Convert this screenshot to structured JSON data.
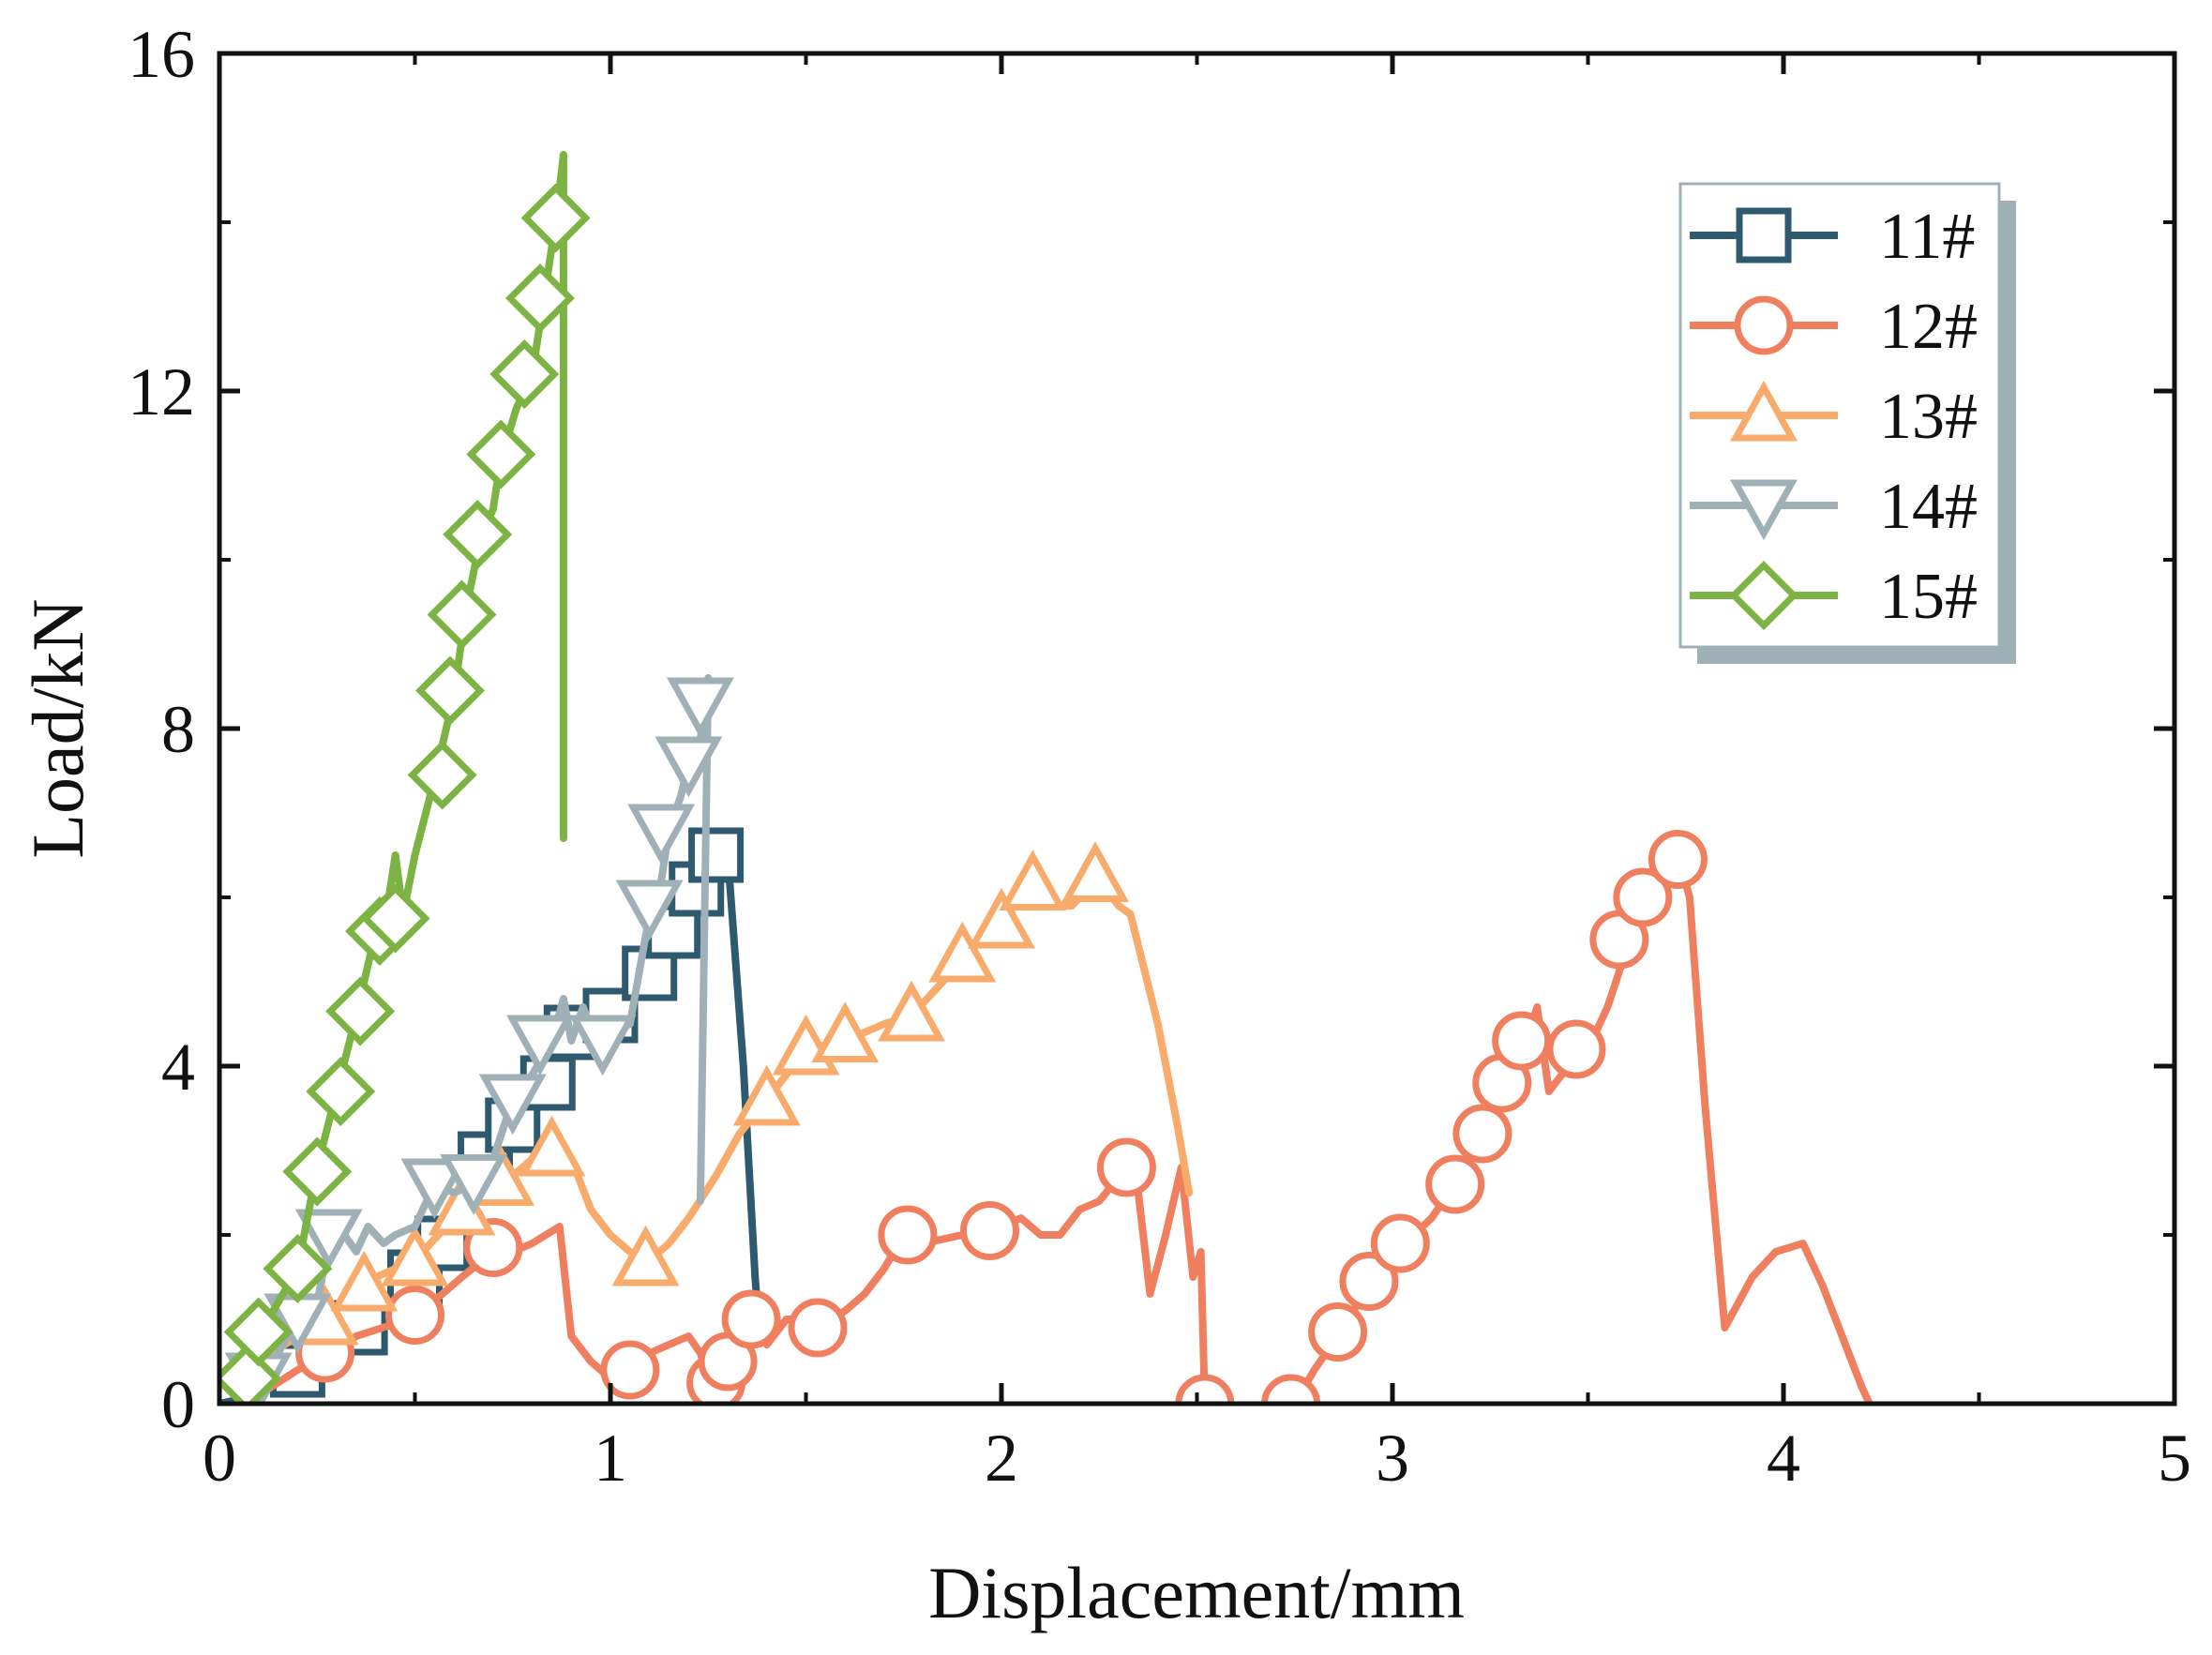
{
  "chart_data": {
    "type": "line",
    "title": "",
    "xlabel": "Displacement/mm",
    "ylabel": "Load/kN",
    "xlim": [
      0,
      5
    ],
    "ylim": [
      0,
      16
    ],
    "xticks": [
      0,
      1,
      2,
      3,
      4,
      5
    ],
    "yticks": [
      0,
      4,
      8,
      12,
      16
    ],
    "x_minor_step": 0.5,
    "y_minor_step": 2,
    "legend_position": "top-right",
    "series": [
      {
        "name": "11#",
        "marker": "square",
        "color": "#2d5a6e",
        "points": [
          [
            0,
            0
          ],
          [
            0.1,
            0.1
          ],
          [
            0.2,
            0.4
          ],
          [
            0.3,
            0.8
          ],
          [
            0.38,
            0.9
          ],
          [
            0.45,
            1.2
          ],
          [
            0.5,
            1.5
          ],
          [
            0.57,
            1.9
          ],
          [
            0.62,
            2.2
          ],
          [
            0.68,
            2.9
          ],
          [
            0.75,
            3.3
          ],
          [
            0.8,
            3.8
          ],
          [
            0.84,
            3.9
          ],
          [
            0.87,
            4.3
          ],
          [
            0.9,
            4.4
          ],
          [
            0.95,
            4.5
          ],
          [
            1.0,
            4.6
          ],
          [
            1.05,
            4.8
          ],
          [
            1.1,
            5.1
          ],
          [
            1.16,
            5.6
          ],
          [
            1.22,
            6.1
          ],
          [
            1.27,
            6.5
          ],
          [
            1.3,
            6.5
          ],
          [
            1.34,
            4.0
          ],
          [
            1.37,
            1.5
          ],
          [
            1.38,
            0.9
          ]
        ],
        "markers": [
          [
            0.2,
            0.4
          ],
          [
            0.36,
            0.9
          ],
          [
            0.5,
            1.5
          ],
          [
            0.57,
            1.9
          ],
          [
            0.68,
            2.9
          ],
          [
            0.75,
            3.3
          ],
          [
            0.84,
            3.8
          ],
          [
            0.9,
            4.4
          ],
          [
            1.0,
            4.6
          ],
          [
            1.1,
            5.1
          ],
          [
            1.16,
            5.6
          ],
          [
            1.22,
            6.1
          ],
          [
            1.27,
            6.5
          ]
        ]
      },
      {
        "name": "12#",
        "marker": "circle",
        "color": "#f07f5f",
        "points": [
          [
            0.1,
            0.1
          ],
          [
            0.2,
            0.4
          ],
          [
            0.28,
            0.6
          ],
          [
            0.35,
            0.8
          ],
          [
            0.45,
            0.95
          ],
          [
            0.5,
            1.05
          ],
          [
            0.57,
            1.3
          ],
          [
            0.62,
            1.5
          ],
          [
            0.7,
            1.8
          ],
          [
            0.75,
            1.8
          ],
          [
            0.8,
            1.9
          ],
          [
            0.87,
            2.1
          ],
          [
            0.9,
            0.8
          ],
          [
            0.95,
            0.5
          ],
          [
            1.0,
            0.3
          ],
          [
            1.05,
            0.4
          ],
          [
            1.1,
            0.6
          ],
          [
            1.15,
            0.7
          ],
          [
            1.2,
            0.8
          ],
          [
            1.23,
            0.6
          ],
          [
            1.25,
            0.3
          ],
          [
            1.28,
            0.5
          ],
          [
            1.33,
            0.8
          ],
          [
            1.36,
            1.0
          ],
          [
            1.4,
            0.7
          ],
          [
            1.45,
            1.0
          ],
          [
            1.5,
            1.0
          ],
          [
            1.53,
            0.9
          ],
          [
            1.6,
            1.1
          ],
          [
            1.65,
            1.3
          ],
          [
            1.7,
            1.6
          ],
          [
            1.75,
            2.0
          ],
          [
            1.8,
            1.9
          ],
          [
            1.9,
            2.0
          ],
          [
            2.0,
            2.1
          ],
          [
            2.05,
            2.2
          ],
          [
            2.1,
            2.0
          ],
          [
            2.15,
            2.0
          ],
          [
            2.2,
            2.3
          ],
          [
            2.25,
            2.4
          ],
          [
            2.32,
            2.8
          ],
          [
            2.35,
            2.5
          ],
          [
            2.38,
            1.3
          ],
          [
            2.42,
            2.0
          ],
          [
            2.46,
            2.8
          ],
          [
            2.49,
            1.5
          ],
          [
            2.51,
            1.8
          ],
          [
            2.52,
            0.0
          ],
          [
            2.6,
            -0.1
          ],
          [
            2.7,
            -0.1
          ],
          [
            2.75,
            0.0
          ],
          [
            2.8,
            0.4
          ],
          [
            2.86,
            0.8
          ],
          [
            2.9,
            1.1
          ],
          [
            2.95,
            1.45
          ],
          [
            3.0,
            1.7
          ],
          [
            3.03,
            1.9
          ],
          [
            3.1,
            2.2
          ],
          [
            3.16,
            2.6
          ],
          [
            3.23,
            3.2
          ],
          [
            3.28,
            3.8
          ],
          [
            3.33,
            4.1
          ],
          [
            3.37,
            4.7
          ],
          [
            3.4,
            3.7
          ],
          [
            3.45,
            4.0
          ],
          [
            3.5,
            4.2
          ],
          [
            3.55,
            4.7
          ],
          [
            3.6,
            5.4
          ],
          [
            3.65,
            5.8
          ],
          [
            3.7,
            6.3
          ],
          [
            3.73,
            6.5
          ],
          [
            3.76,
            6.0
          ],
          [
            3.8,
            3.5
          ],
          [
            3.85,
            0.9
          ],
          [
            3.92,
            1.5
          ],
          [
            3.98,
            1.8
          ],
          [
            4.05,
            1.9
          ],
          [
            4.1,
            1.4
          ],
          [
            4.2,
            0.2
          ],
          [
            4.22,
            0.0
          ]
        ],
        "markers": [
          [
            0.27,
            0.6
          ],
          [
            0.5,
            1.05
          ],
          [
            0.7,
            1.85
          ],
          [
            1.05,
            0.4
          ],
          [
            1.27,
            0.25
          ],
          [
            1.3,
            0.5
          ],
          [
            1.36,
            1.0
          ],
          [
            1.53,
            0.9
          ],
          [
            1.76,
            2.0
          ],
          [
            1.97,
            2.05
          ],
          [
            2.32,
            2.8
          ],
          [
            2.52,
            0.0
          ],
          [
            2.74,
            0.0
          ],
          [
            2.86,
            0.85
          ],
          [
            2.94,
            1.45
          ],
          [
            3.02,
            1.9
          ],
          [
            3.16,
            2.6
          ],
          [
            3.23,
            3.2
          ],
          [
            3.28,
            3.8
          ],
          [
            3.33,
            4.3
          ],
          [
            3.47,
            4.2
          ],
          [
            3.58,
            5.5
          ],
          [
            3.64,
            6.0
          ],
          [
            3.73,
            6.45
          ]
        ]
      },
      {
        "name": "13#",
        "marker": "triangle-up",
        "color": "#f8ab6b",
        "points": [
          [
            0.05,
            0.3
          ],
          [
            0.1,
            0.5
          ],
          [
            0.2,
            0.8
          ],
          [
            0.28,
            1.0
          ],
          [
            0.35,
            1.4
          ],
          [
            0.4,
            1.5
          ],
          [
            0.45,
            1.6
          ],
          [
            0.5,
            1.7
          ],
          [
            0.56,
            2.0
          ],
          [
            0.62,
            2.3
          ],
          [
            0.7,
            2.6
          ],
          [
            0.75,
            2.7
          ],
          [
            0.8,
            2.9
          ],
          [
            0.85,
            3.05
          ],
          [
            0.9,
            2.9
          ],
          [
            0.95,
            2.3
          ],
          [
            1.0,
            2.0
          ],
          [
            1.05,
            1.8
          ],
          [
            1.1,
            1.7
          ],
          [
            1.15,
            1.9
          ],
          [
            1.2,
            2.2
          ],
          [
            1.27,
            2.7
          ],
          [
            1.33,
            3.2
          ],
          [
            1.4,
            3.6
          ],
          [
            1.45,
            3.9
          ],
          [
            1.5,
            4.2
          ],
          [
            1.6,
            4.3
          ],
          [
            1.7,
            4.5
          ],
          [
            1.77,
            4.6
          ],
          [
            1.85,
            5.0
          ],
          [
            1.9,
            5.3
          ],
          [
            1.95,
            5.5
          ],
          [
            2.0,
            5.7
          ],
          [
            2.05,
            6.0
          ],
          [
            2.08,
            6.2
          ],
          [
            2.12,
            5.9
          ],
          [
            2.18,
            5.9
          ],
          [
            2.22,
            6.1
          ],
          [
            2.25,
            6.2
          ],
          [
            2.3,
            5.9
          ],
          [
            2.33,
            5.8
          ],
          [
            2.4,
            4.5
          ],
          [
            2.45,
            3.3
          ],
          [
            2.48,
            2.5
          ]
        ],
        "markers": [
          [
            0.27,
            1.0
          ],
          [
            0.37,
            1.4
          ],
          [
            0.5,
            1.7
          ],
          [
            0.62,
            2.3
          ],
          [
            0.72,
            2.65
          ],
          [
            0.85,
            3.0
          ],
          [
            1.09,
            1.7
          ],
          [
            1.4,
            3.6
          ],
          [
            1.5,
            4.2
          ],
          [
            1.6,
            4.35
          ],
          [
            1.77,
            4.6
          ],
          [
            1.9,
            5.3
          ],
          [
            2.0,
            5.7
          ],
          [
            2.08,
            6.15
          ],
          [
            2.24,
            6.25
          ]
        ]
      },
      {
        "name": "14#",
        "marker": "triangle-down",
        "color": "#9fb0b7",
        "points": [
          [
            0.05,
            0.0
          ],
          [
            0.1,
            0.3
          ],
          [
            0.15,
            0.6
          ],
          [
            0.2,
            1.0
          ],
          [
            0.25,
            1.2
          ],
          [
            0.28,
            1.9
          ],
          [
            0.32,
            2.0
          ],
          [
            0.35,
            1.8
          ],
          [
            0.38,
            2.1
          ],
          [
            0.42,
            1.9
          ],
          [
            0.45,
            2.0
          ],
          [
            0.5,
            2.1
          ],
          [
            0.55,
            2.6
          ],
          [
            0.6,
            2.5
          ],
          [
            0.65,
            2.6
          ],
          [
            0.7,
            2.9
          ],
          [
            0.75,
            3.6
          ],
          [
            0.8,
            3.9
          ],
          [
            0.85,
            4.3
          ],
          [
            0.88,
            4.8
          ],
          [
            0.9,
            4.3
          ],
          [
            0.93,
            4.7
          ],
          [
            0.97,
            4.2
          ],
          [
            1.0,
            4.4
          ],
          [
            1.05,
            4.5
          ],
          [
            1.1,
            5.8
          ],
          [
            1.13,
            6.2
          ],
          [
            1.15,
            6.8
          ],
          [
            1.18,
            7.2
          ],
          [
            1.2,
            7.6
          ],
          [
            1.22,
            7.5
          ],
          [
            1.25,
            8.6
          ],
          [
            1.23,
            2.4
          ]
        ],
        "markers": [
          [
            0.1,
            0.3
          ],
          [
            0.2,
            1.0
          ],
          [
            0.28,
            2.0
          ],
          [
            0.55,
            2.6
          ],
          [
            0.65,
            2.65
          ],
          [
            0.75,
            3.6
          ],
          [
            0.82,
            4.3
          ],
          [
            0.98,
            4.3
          ],
          [
            1.1,
            5.9
          ],
          [
            1.13,
            6.8
          ],
          [
            1.2,
            7.6
          ],
          [
            1.23,
            8.3
          ]
        ]
      },
      {
        "name": "15#",
        "marker": "diamond",
        "color": "#7cb342",
        "points": [
          [
            0.05,
            0.3
          ],
          [
            0.1,
            0.8
          ],
          [
            0.15,
            1.2
          ],
          [
            0.2,
            1.6
          ],
          [
            0.25,
            2.8
          ],
          [
            0.3,
            3.7
          ],
          [
            0.35,
            4.6
          ],
          [
            0.4,
            5.6
          ],
          [
            0.43,
            5.9
          ],
          [
            0.45,
            6.5
          ],
          [
            0.47,
            5.8
          ],
          [
            0.5,
            6.5
          ],
          [
            0.55,
            7.4
          ],
          [
            0.6,
            8.4
          ],
          [
            0.63,
            9.4
          ],
          [
            0.67,
            10.3
          ],
          [
            0.7,
            10.6
          ],
          [
            0.72,
            11.2
          ],
          [
            0.76,
            11.8
          ],
          [
            0.8,
            12.2
          ],
          [
            0.83,
            13.1
          ],
          [
            0.86,
            14.0
          ],
          [
            0.88,
            14.8
          ],
          [
            0.88,
            6.7
          ]
        ],
        "markers": [
          [
            0.07,
            0.3
          ],
          [
            0.1,
            0.85
          ],
          [
            0.2,
            1.6
          ],
          [
            0.25,
            2.75
          ],
          [
            0.31,
            3.7
          ],
          [
            0.36,
            4.65
          ],
          [
            0.41,
            5.6
          ],
          [
            0.45,
            5.75
          ],
          [
            0.57,
            7.45
          ],
          [
            0.59,
            8.45
          ],
          [
            0.62,
            9.35
          ],
          [
            0.66,
            10.3
          ],
          [
            0.72,
            11.25
          ],
          [
            0.78,
            12.2
          ],
          [
            0.82,
            13.1
          ],
          [
            0.86,
            14.05
          ]
        ]
      }
    ]
  }
}
